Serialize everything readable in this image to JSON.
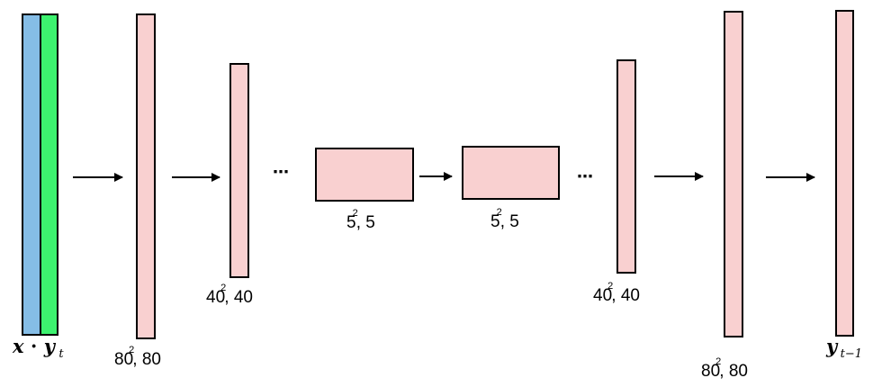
{
  "colors": {
    "block_fill": "#f9d0d0",
    "input_x_fill": "#85bde6",
    "input_y_fill": "#3df26f",
    "stroke": "#000000"
  },
  "input": {
    "label_x": "x",
    "label_dot": "·",
    "label_y": "y",
    "label_y_sub": "t"
  },
  "output": {
    "label_y": "y",
    "label_y_sub": "t−1"
  },
  "blocks": [
    {
      "id": "enc-80",
      "label_base": "80",
      "label_sup": "2",
      "label_tail": ", 80"
    },
    {
      "id": "enc-40",
      "label_base": "40",
      "label_sup": "2",
      "label_tail": ", 40"
    },
    {
      "id": "bottleneck-in",
      "label_base": "5",
      "label_sup": "2",
      "label_tail": ", 5"
    },
    {
      "id": "bottleneck-out",
      "label_base": "5",
      "label_sup": "2",
      "label_tail": ", 5"
    },
    {
      "id": "dec-40",
      "label_base": "40",
      "label_sup": "2",
      "label_tail": ", 40"
    },
    {
      "id": "dec-80",
      "label_base": "80",
      "label_sup": "2",
      "label_tail": ", 80"
    }
  ],
  "ellipsis": "⋯"
}
